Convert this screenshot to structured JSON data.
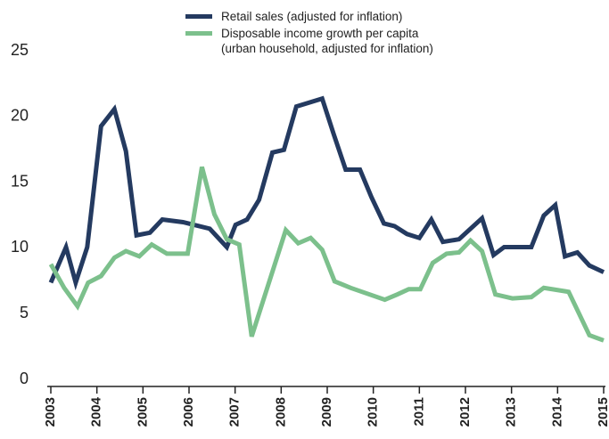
{
  "chart_data": {
    "type": "line",
    "x": [
      2003.0,
      2003.33,
      2003.54,
      2003.79,
      2004.09,
      2004.38,
      2004.63,
      2004.86,
      2005.15,
      2005.42,
      2005.87,
      2006.45,
      2006.82,
      2007.01,
      2007.26,
      2007.52,
      2007.81,
      2008.06,
      2008.33,
      2008.89,
      2009.14,
      2009.4,
      2009.71,
      2009.96,
      2010.23,
      2010.46,
      2010.73,
      2011.0,
      2011.26,
      2011.51,
      2011.86,
      2012.36,
      2012.61,
      2012.84,
      2013.43,
      2013.7,
      2013.95,
      2014.16,
      2014.43,
      2014.69,
      2015.0
    ],
    "series": [
      {
        "name": "Retail sales (adjusted for inflation)",
        "color": "#243a60",
        "values": [
          7.9,
          10.6,
          7.9,
          10.6,
          19.8,
          21.1,
          17.9,
          11.5,
          11.7,
          12.7,
          12.5,
          12.0,
          10.6,
          12.3,
          12.7,
          14.2,
          17.8,
          18.0,
          21.3,
          21.9,
          19.2,
          16.5,
          16.5,
          14.4,
          12.4,
          12.2,
          11.6,
          11.3,
          12.7,
          11.0,
          11.2,
          12.8,
          10.0,
          10.6,
          10.6,
          13.0,
          13.8,
          9.9,
          10.2,
          9.2,
          8.7
        ]
      },
      {
        "name": "Disposable income growth per capita\n(urban household, adjusted for inflation)",
        "color": "#7cc08c",
        "x": [
          2003.0,
          2003.29,
          2003.58,
          2003.81,
          2004.09,
          2004.38,
          2004.63,
          2004.92,
          2005.19,
          2005.52,
          2005.97,
          2006.28,
          2006.55,
          2006.82,
          2007.09,
          2007.36,
          2008.1,
          2008.37,
          2008.64,
          2008.89,
          2009.16,
          2009.51,
          2010.25,
          2010.52,
          2010.77,
          2011.02,
          2011.29,
          2011.59,
          2011.86,
          2012.11,
          2012.36,
          2012.65,
          2013.02,
          2013.43,
          2013.7,
          2014.24,
          2014.69,
          2015.0
        ],
        "values": [
          9.3,
          7.5,
          6.1,
          7.9,
          8.4,
          9.8,
          10.3,
          9.9,
          10.8,
          10.1,
          10.1,
          16.7,
          13.1,
          11.2,
          10.8,
          3.8,
          11.9,
          10.9,
          11.3,
          10.4,
          8.0,
          7.5,
          6.6,
          7.0,
          7.4,
          7.4,
          9.4,
          10.1,
          10.2,
          11.1,
          10.3,
          7.0,
          6.7,
          6.8,
          7.5,
          7.2,
          3.9,
          3.5
        ]
      }
    ],
    "xlim": [
      2003,
      2015
    ],
    "xticks": [
      2003,
      2004,
      2005,
      2006,
      2007,
      2008,
      2009,
      2010,
      2011,
      2012,
      2013,
      2014,
      2015
    ],
    "ylim": [
      0,
      25
    ],
    "yticks": [
      0,
      5,
      10,
      15,
      20,
      25
    ],
    "grid": false
  }
}
